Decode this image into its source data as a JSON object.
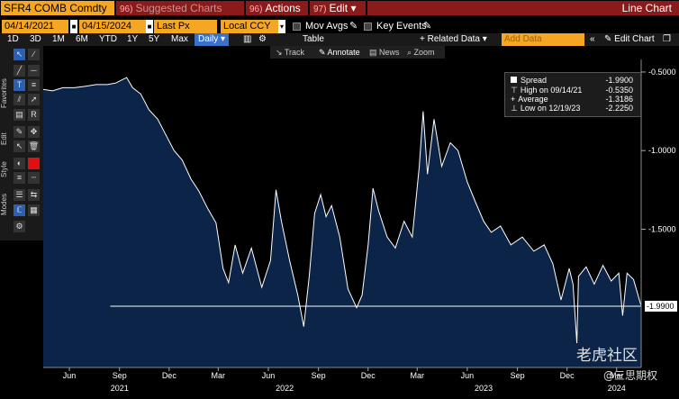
{
  "top_bar": {
    "ticker": "SFR4 COMB Comdty",
    "suggested_num": "96)",
    "suggested_label": "Suggested Charts",
    "actions_num": "96)",
    "actions_label": "Actions",
    "edit_num": "97)",
    "edit_label": "Edit",
    "chart_type": "Line Chart"
  },
  "controls": {
    "start_date": "04/14/2021",
    "end_date": "04/15/2024",
    "field": "Last Px",
    "currency": "Local CCY",
    "mov_avgs": "Mov Avgs",
    "key_events": "Key Events"
  },
  "periods": {
    "items": [
      "1D",
      "3D",
      "1M",
      "6M",
      "YTD",
      "1Y",
      "5Y",
      "Max"
    ],
    "frequency": "Daily",
    "table": "Table",
    "related_data": "+ Related Data",
    "add_data": "Add Data",
    "edit_chart": "Edit Chart"
  },
  "tools": {
    "track": "Track",
    "annotate": "Annotate",
    "news": "News",
    "zoom": "Zoom"
  },
  "sidebar": {
    "favorites": "Favorites",
    "edit": "Edit",
    "style": "Style",
    "modes": "Modes"
  },
  "legend": {
    "spread_label": "Spread",
    "spread_value": "-1.9900",
    "high_label": "High on 09/14/21",
    "high_value": "-0.5350",
    "avg_label": "Average",
    "avg_value": "-1.3186",
    "low_label": "Low on 12/19/23",
    "low_value": "-2.2250"
  },
  "watermark": {
    "brand": "老虎社区",
    "handle": "@三思期权"
  },
  "colors": {
    "background": "#000000",
    "area_fill": "#0b2447",
    "line": "#ffffff",
    "accent_orange": "#f5a623",
    "menu_red": "#8b1a1a"
  },
  "chart_data": {
    "type": "area",
    "series": [
      {
        "name": "Spread",
        "points": [
          [
            "2021-04-14",
            -0.61
          ],
          [
            "2021-05-01",
            -0.62
          ],
          [
            "2021-05-20",
            -0.6
          ],
          [
            "2021-06-10",
            -0.6
          ],
          [
            "2021-07-01",
            -0.59
          ],
          [
            "2021-07-20",
            -0.58
          ],
          [
            "2021-08-10",
            -0.58
          ],
          [
            "2021-08-25",
            -0.57
          ],
          [
            "2021-09-14",
            -0.535
          ],
          [
            "2021-09-25",
            -0.6
          ],
          [
            "2021-10-10",
            -0.64
          ],
          [
            "2021-10-25",
            -0.74
          ],
          [
            "2021-11-10",
            -0.8
          ],
          [
            "2021-11-25",
            -0.9
          ],
          [
            "2021-12-10",
            -1.0
          ],
          [
            "2021-12-25",
            -1.06
          ],
          [
            "2022-01-10",
            -1.18
          ],
          [
            "2022-01-25",
            -1.26
          ],
          [
            "2022-02-10",
            -1.37
          ],
          [
            "2022-02-25",
            -1.46
          ],
          [
            "2022-03-10",
            -1.75
          ],
          [
            "2022-03-20",
            -1.84
          ],
          [
            "2022-04-01",
            -1.6
          ],
          [
            "2022-04-15",
            -1.78
          ],
          [
            "2022-05-01",
            -1.62
          ],
          [
            "2022-05-20",
            -1.87
          ],
          [
            "2022-06-05",
            -1.7
          ],
          [
            "2022-06-15",
            -1.25
          ],
          [
            "2022-06-25",
            -1.45
          ],
          [
            "2022-07-10",
            -1.7
          ],
          [
            "2022-07-25",
            -1.92
          ],
          [
            "2022-08-05",
            -2.12
          ],
          [
            "2022-08-15",
            -1.8
          ],
          [
            "2022-08-25",
            -1.4
          ],
          [
            "2022-09-05",
            -1.28
          ],
          [
            "2022-09-15",
            -1.42
          ],
          [
            "2022-09-25",
            -1.35
          ],
          [
            "2022-10-10",
            -1.55
          ],
          [
            "2022-10-25",
            -1.88
          ],
          [
            "2022-11-10",
            -2.0
          ],
          [
            "2022-11-20",
            -1.92
          ],
          [
            "2022-12-01",
            -1.6
          ],
          [
            "2022-12-10",
            -1.24
          ],
          [
            "2022-12-20",
            -1.38
          ],
          [
            "2023-01-05",
            -1.55
          ],
          [
            "2023-01-20",
            -1.62
          ],
          [
            "2023-02-05",
            -1.45
          ],
          [
            "2023-02-20",
            -1.55
          ],
          [
            "2023-03-05",
            -1.1
          ],
          [
            "2023-03-12",
            -0.75
          ],
          [
            "2023-03-20",
            -1.15
          ],
          [
            "2023-04-01",
            -0.8
          ],
          [
            "2023-04-15",
            -1.1
          ],
          [
            "2023-05-01",
            -0.95
          ],
          [
            "2023-05-15",
            -1.0
          ],
          [
            "2023-06-01",
            -1.2
          ],
          [
            "2023-06-15",
            -1.32
          ],
          [
            "2023-07-01",
            -1.45
          ],
          [
            "2023-07-15",
            -1.52
          ],
          [
            "2023-08-01",
            -1.48
          ],
          [
            "2023-08-20",
            -1.6
          ],
          [
            "2023-09-10",
            -1.55
          ],
          [
            "2023-10-01",
            -1.64
          ],
          [
            "2023-10-20",
            -1.6
          ],
          [
            "2023-11-05",
            -1.72
          ],
          [
            "2023-11-20",
            -1.95
          ],
          [
            "2023-12-05",
            -1.75
          ],
          [
            "2023-12-12",
            -1.85
          ],
          [
            "2023-12-19",
            -2.225
          ],
          [
            "2023-12-22",
            -1.8
          ],
          [
            "2024-01-05",
            -1.74
          ],
          [
            "2024-01-20",
            -1.85
          ],
          [
            "2024-02-05",
            -1.73
          ],
          [
            "2024-02-20",
            -1.83
          ],
          [
            "2024-03-05",
            -1.78
          ],
          [
            "2024-03-12",
            -2.05
          ],
          [
            "2024-03-20",
            -1.78
          ],
          [
            "2024-04-01",
            -1.82
          ],
          [
            "2024-04-15",
            -1.99
          ]
        ]
      }
    ],
    "reference_line": -1.99,
    "reference_label": "-1.9900",
    "yticks": [
      -0.5,
      -1.0,
      -1.5
    ],
    "ytick_labels": [
      "-0.5000",
      "-1.0000",
      "-1.5000"
    ],
    "ylim": [
      -2.38,
      -0.42
    ],
    "xlim": [
      "2021-04-14",
      "2024-04-15"
    ],
    "month_ticks": [
      [
        "2021-06-01",
        "Jun"
      ],
      [
        "2021-09-01",
        "Sep"
      ],
      [
        "2021-12-01",
        "Dec"
      ],
      [
        "2022-03-01",
        "Mar"
      ],
      [
        "2022-06-01",
        "Jun"
      ],
      [
        "2022-09-01",
        "Sep"
      ],
      [
        "2022-12-01",
        "Dec"
      ],
      [
        "2023-03-01",
        "Mar"
      ],
      [
        "2023-06-01",
        "Jun"
      ],
      [
        "2023-09-01",
        "Sep"
      ],
      [
        "2023-12-01",
        "Dec"
      ],
      [
        "2024-03-01",
        "Mar"
      ]
    ],
    "year_ticks": [
      [
        "2021-09-01",
        "2021"
      ],
      [
        "2022-07-01",
        "2022"
      ],
      [
        "2023-07-01",
        "2023"
      ],
      [
        "2024-03-01",
        "2024"
      ]
    ],
    "grid": false,
    "legend_position": "top-right"
  }
}
